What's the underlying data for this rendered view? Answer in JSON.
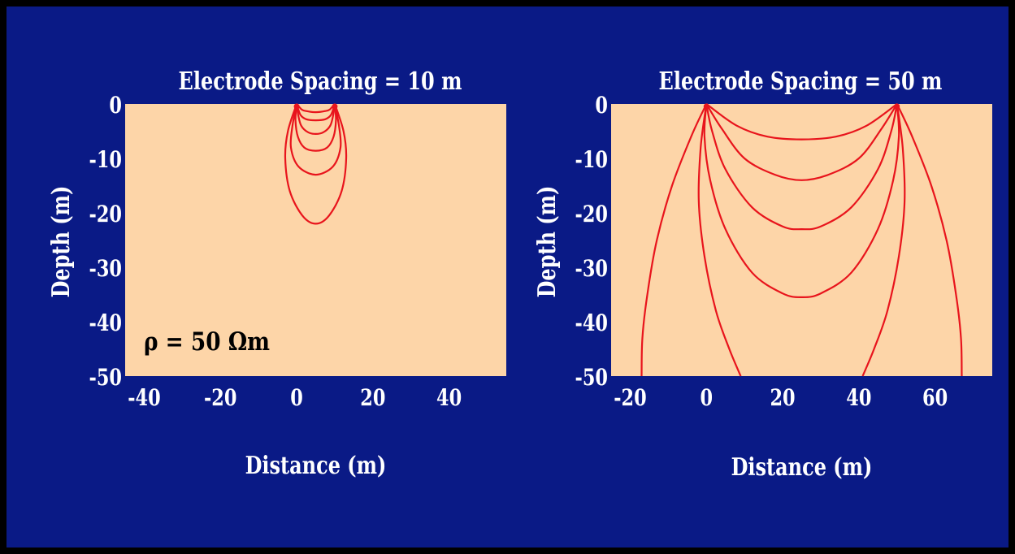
{
  "colors": {
    "background": "#0a1a86",
    "border": "#000000",
    "plot_area": "#fdd5a8",
    "line": "#e8141c",
    "text": "#ffffff",
    "annotation_text": "#000000"
  },
  "chart_data": [
    {
      "type": "line",
      "title": "Electrode Spacing = 10 m",
      "xlabel": "Distance (m)",
      "ylabel": "Depth (m)",
      "xlim": [
        -45,
        55
      ],
      "ylim": [
        -50,
        0
      ],
      "xticks": [
        "-40",
        "-20",
        "0",
        "20",
        "40"
      ],
      "yticks": [
        "0",
        "-10",
        "-20",
        "-30",
        "-40",
        "-50"
      ],
      "annotation": "ρ = 50 Ωm",
      "electrodes": [
        0,
        10
      ],
      "series": [
        {
          "points": [
            [
              0,
              0
            ],
            [
              1.3,
              -1
            ],
            [
              2.5,
              -1.3
            ],
            [
              5,
              -1.5
            ],
            [
              7.5,
              -1.3
            ],
            [
              8.7,
              -1
            ],
            [
              10,
              0
            ]
          ]
        },
        {
          "points": [
            [
              0,
              0
            ],
            [
              1.0,
              -2
            ],
            [
              2.5,
              -2.8
            ],
            [
              5,
              -3
            ],
            [
              7.5,
              -2.8
            ],
            [
              9.0,
              -2
            ],
            [
              10,
              0
            ]
          ]
        },
        {
          "points": [
            [
              0,
              0
            ],
            [
              0.4,
              -2
            ],
            [
              1.2,
              -4
            ],
            [
              3,
              -5.2
            ],
            [
              5,
              -5.5
            ],
            [
              7,
              -5.2
            ],
            [
              8.8,
              -4
            ],
            [
              9.6,
              -2
            ],
            [
              10,
              0
            ]
          ]
        },
        {
          "points": [
            [
              0,
              0
            ],
            [
              -0.3,
              -3
            ],
            [
              0.3,
              -6
            ],
            [
              2,
              -8
            ],
            [
              5,
              -8.6
            ],
            [
              8,
              -8
            ],
            [
              9.7,
              -6
            ],
            [
              10.3,
              -3
            ],
            [
              10,
              0
            ]
          ]
        },
        {
          "points": [
            [
              0,
              0
            ],
            [
              -1.1,
              -4
            ],
            [
              -1.5,
              -8
            ],
            [
              0.5,
              -11.5
            ],
            [
              5,
              -13
            ],
            [
              9.5,
              -11.5
            ],
            [
              11.5,
              -8
            ],
            [
              11.1,
              -4
            ],
            [
              10,
              0
            ]
          ]
        },
        {
          "points": [
            [
              0,
              0
            ],
            [
              -2.3,
              -5
            ],
            [
              -3,
              -10
            ],
            [
              -1.8,
              -16
            ],
            [
              1.5,
              -20.5
            ],
            [
              5,
              -22
            ],
            [
              8.5,
              -20.5
            ],
            [
              11.8,
              -16
            ],
            [
              13,
              -10
            ],
            [
              12.3,
              -5
            ],
            [
              10,
              0
            ]
          ]
        }
      ]
    },
    {
      "type": "line",
      "title": "Electrode Spacing = 50 m",
      "xlabel": "Distance (m)",
      "ylabel": "Depth (m)",
      "xlim": [
        -25,
        75
      ],
      "ylim": [
        -50,
        0
      ],
      "xticks": [
        "-20",
        "0",
        "20",
        "40",
        "60"
      ],
      "yticks": [
        "0",
        "-10",
        "-20",
        "-30",
        "-40",
        "-50"
      ],
      "electrodes": [
        0,
        50
      ],
      "series": [
        {
          "points": [
            [
              0,
              0
            ],
            [
              8,
              -4
            ],
            [
              16,
              -6
            ],
            [
              25,
              -6.5
            ],
            [
              34,
              -6
            ],
            [
              42,
              -4
            ],
            [
              50,
              0
            ]
          ]
        },
        {
          "points": [
            [
              0,
              0
            ],
            [
              4,
              -4.5
            ],
            [
              10,
              -10
            ],
            [
              18,
              -13
            ],
            [
              25,
              -14
            ],
            [
              32,
              -13
            ],
            [
              40,
              -10
            ],
            [
              46,
              -4.5
            ],
            [
              50,
              0
            ]
          ]
        },
        {
          "points": [
            [
              0,
              0
            ],
            [
              1.5,
              -5
            ],
            [
              5,
              -12
            ],
            [
              12,
              -19
            ],
            [
              20,
              -22.5
            ],
            [
              25,
              -23
            ],
            [
              30,
              -22.5
            ],
            [
              38,
              -19
            ],
            [
              45,
              -12
            ],
            [
              48.5,
              -5
            ],
            [
              50,
              0
            ]
          ]
        },
        {
          "points": [
            [
              0,
              0
            ],
            [
              -0.5,
              -6
            ],
            [
              1,
              -14
            ],
            [
              5,
              -23
            ],
            [
              12,
              -31
            ],
            [
              20,
              -34.8
            ],
            [
              25,
              -35.5
            ],
            [
              30,
              -34.8
            ],
            [
              38,
              -31
            ],
            [
              45,
              -23
            ],
            [
              49,
              -14
            ],
            [
              50.5,
              -6
            ],
            [
              50,
              0
            ]
          ]
        },
        {
          "points": [
            [
              0,
              0
            ],
            [
              -1.5,
              -8
            ],
            [
              -2,
              -18
            ],
            [
              -0.5,
              -28
            ],
            [
              2.5,
              -38
            ],
            [
              6,
              -45
            ],
            [
              9,
              -50
            ]
          ]
        },
        {
          "points": [
            [
              50,
              0
            ],
            [
              51.5,
              -8
            ],
            [
              52,
              -18
            ],
            [
              50.5,
              -28
            ],
            [
              47.5,
              -38
            ],
            [
              44,
              -45
            ],
            [
              41,
              -50
            ]
          ]
        },
        {
          "points": [
            [
              0,
              0
            ],
            [
              -4,
              -6
            ],
            [
              -9,
              -15
            ],
            [
              -13,
              -25
            ],
            [
              -15.5,
              -35
            ],
            [
              -16.8,
              -43
            ],
            [
              -17,
              -50
            ]
          ]
        },
        {
          "points": [
            [
              50,
              0
            ],
            [
              54,
              -6
            ],
            [
              59,
              -15
            ],
            [
              63,
              -25
            ],
            [
              65.5,
              -35
            ],
            [
              66.8,
              -43
            ],
            [
              67,
              -50
            ]
          ]
        }
      ]
    }
  ]
}
